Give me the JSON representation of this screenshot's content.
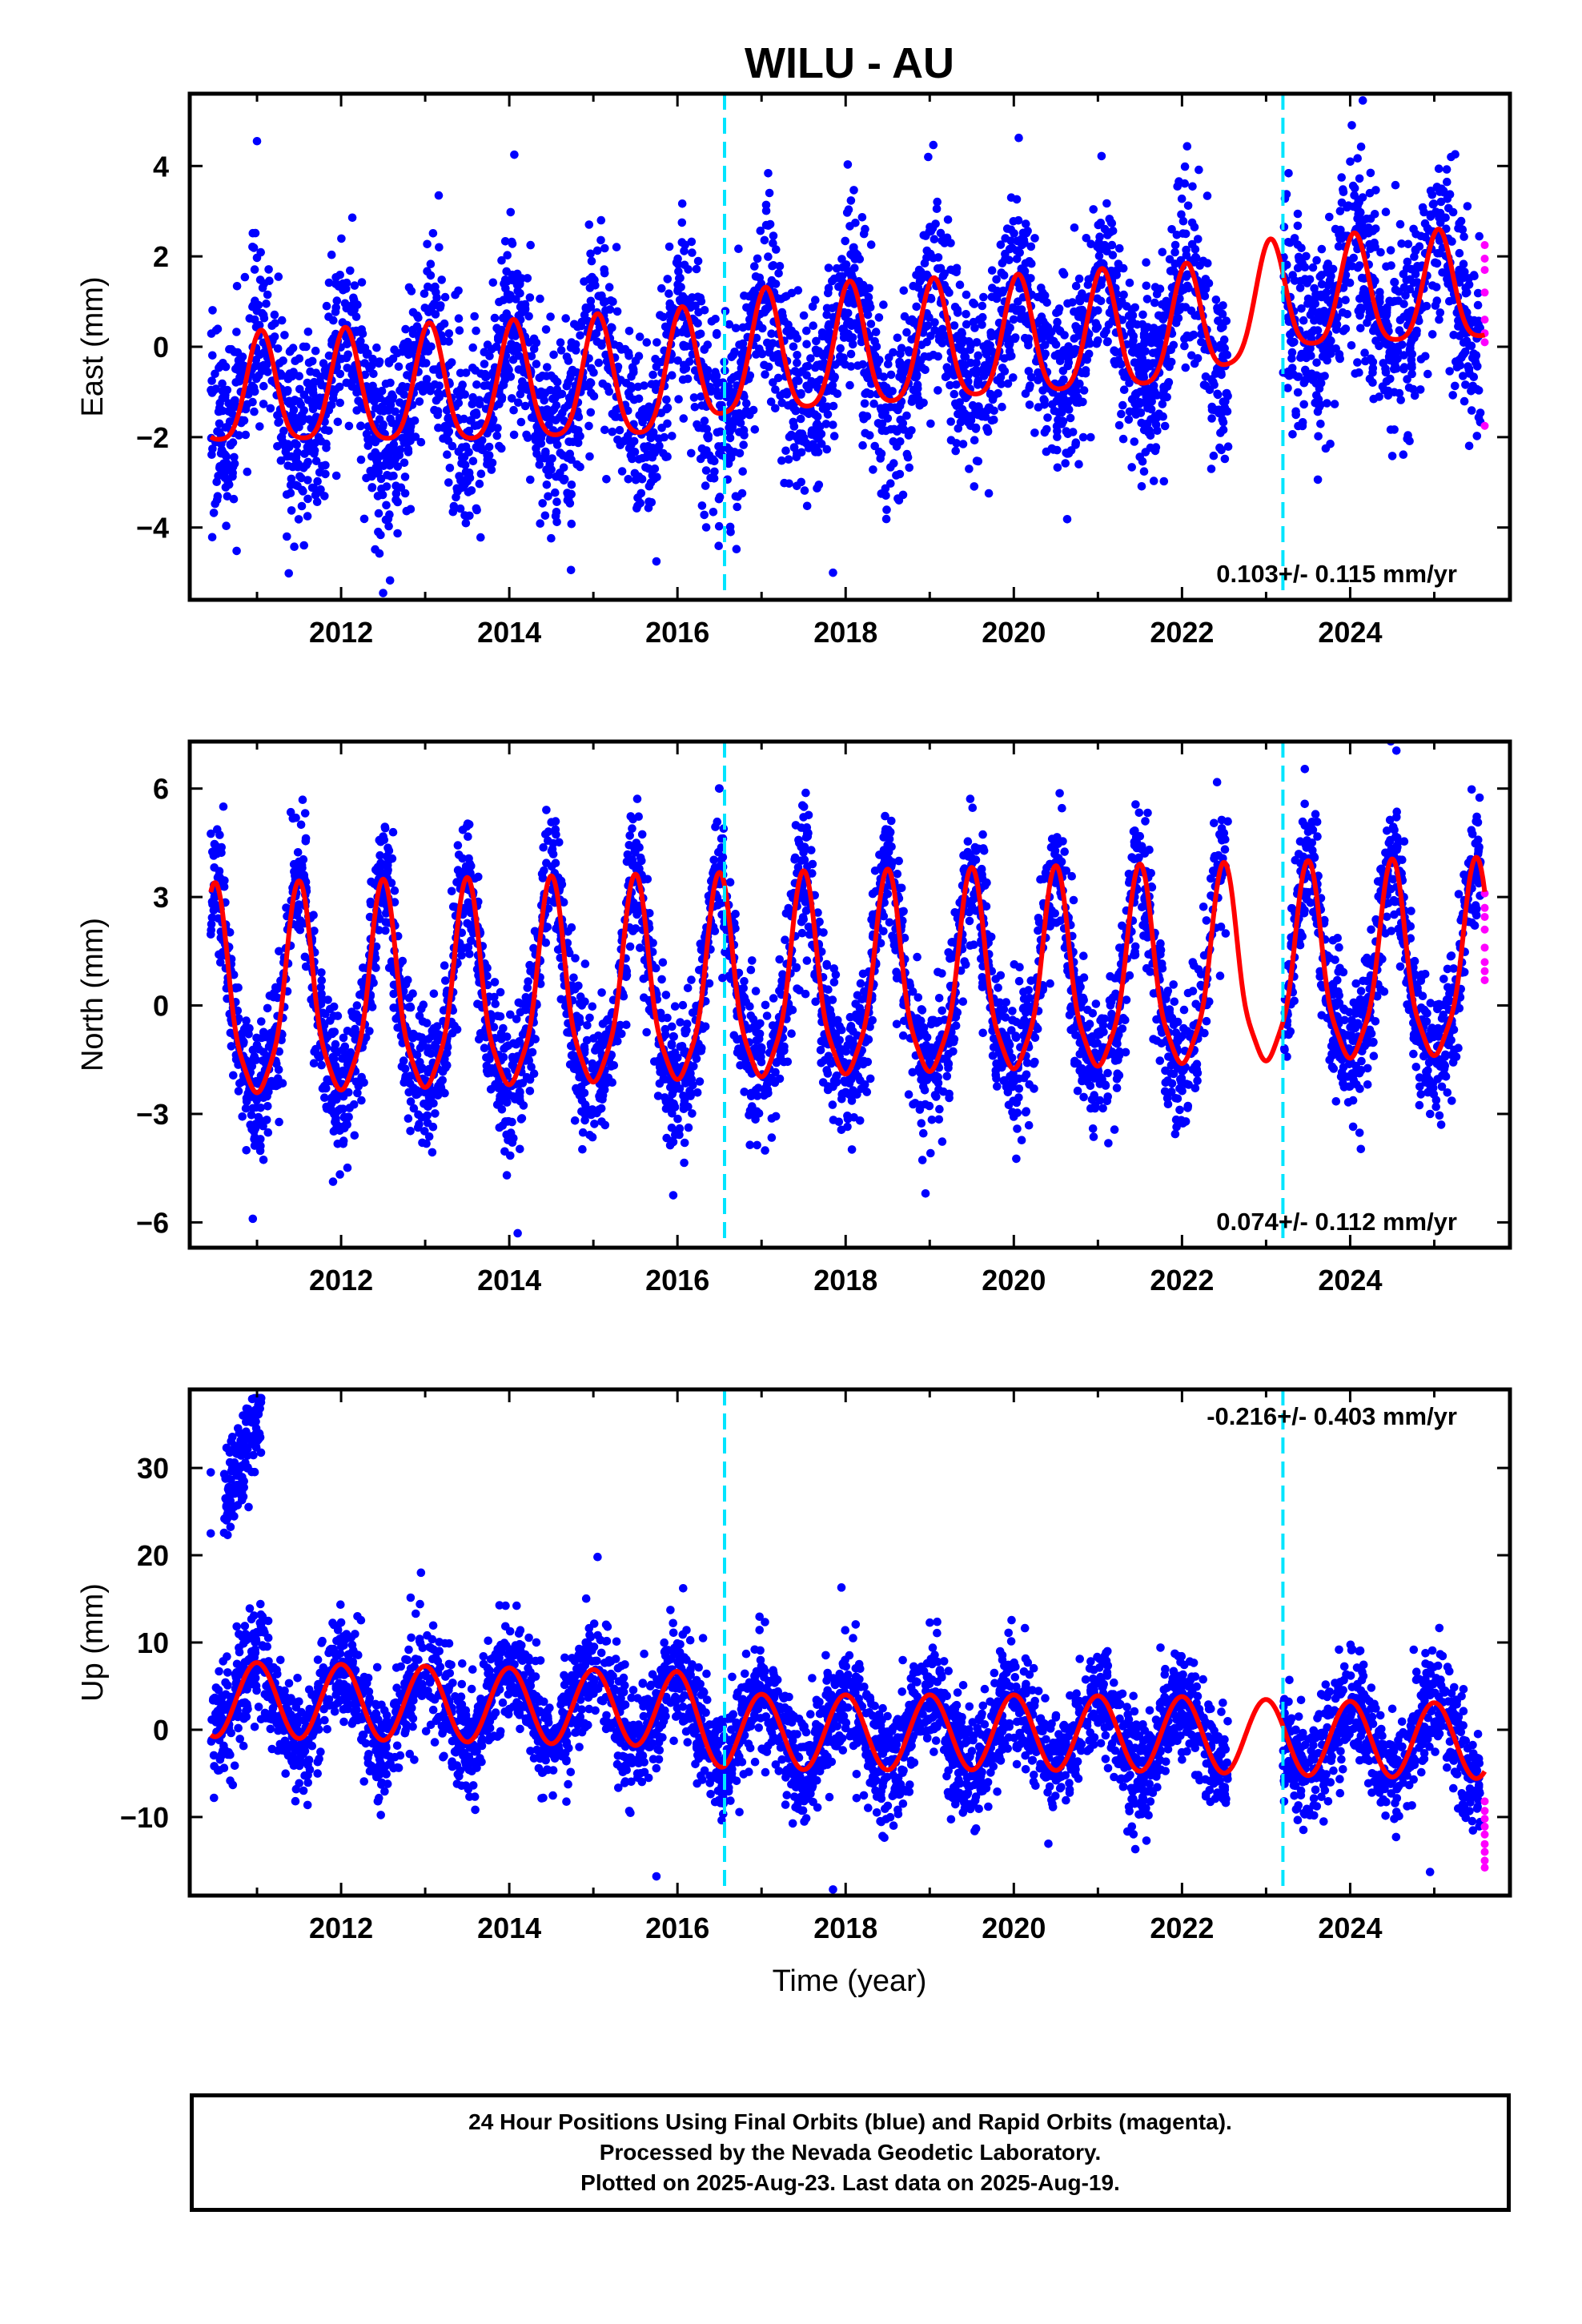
{
  "title": "WILU - AU",
  "colors": {
    "final_orbits": "#0000ff",
    "rapid_orbits": "#ff00ff",
    "model": "#ff0000",
    "breaks": "#00e5ff",
    "frame": "#000000"
  },
  "footer": {
    "line1": "24 Hour Positions Using Final Orbits (blue) and Rapid Orbits (magenta).",
    "line2": "Processed by the Nevada Geodetic Laboratory.",
    "line3": "Plotted on 2025-Aug-23. Last data on 2025-Aug-19."
  },
  "chart_data": [
    {
      "type": "scatter",
      "component": "east",
      "ylabel": "East (mm)",
      "xlabel": "",
      "xlim": [
        2010.2,
        2025.9
      ],
      "ylim": [
        -5.6,
        5.6
      ],
      "xticks": [
        2012,
        2014,
        2016,
        2018,
        2020,
        2022,
        2024
      ],
      "xtick_labels": [
        "2012",
        "2014",
        "2016",
        "2018",
        "2020",
        "2022",
        "2024"
      ],
      "yticks": [
        -4,
        -2,
        0,
        2,
        4
      ],
      "ytick_labels": [
        "−4",
        "−2",
        "0",
        "2",
        "4"
      ],
      "rate_label": "0.103+/- 0.115 mm/yr",
      "rate_position": "bottom-right",
      "breaks": [
        2016.56,
        2023.2
      ],
      "model": {
        "amplitude_mm": [
          1.2,
          1.2,
          1.25,
          1.3,
          1.3,
          1.35,
          1.35,
          1.35,
          1.35,
          1.3,
          1.3,
          1.3,
          1.25,
          1.2,
          1.2,
          1.2
        ],
        "amplitude_years": [
          2010.5,
          2011.5,
          2012.5,
          2013.5,
          2014.5,
          2015.5,
          2016.5,
          2017.5,
          2018.5,
          2019.5,
          2020.5,
          2021.5,
          2022.5,
          2023.5,
          2024.5,
          2025.5
        ],
        "offset_x": [
          2010.5,
          2012.0,
          2014.0,
          2016.0,
          2016.56,
          2018.0,
          2020.0,
          2022.0,
          2023.2,
          2025.0,
          2025.6
        ],
        "offset_y": [
          -1.1,
          -1.05,
          -0.95,
          -0.75,
          -0.35,
          -0.15,
          0.05,
          0.3,
          1.0,
          1.15,
          1.2
        ],
        "phase_peak": 0.05
      },
      "final_orbits": {
        "x_range": [
          2010.45,
          2025.55
        ],
        "gaps": [
          [
            2022.55,
            2023.2
          ]
        ],
        "noise_sd": 1.05,
        "count": 4200,
        "outliers": [
          [
            2011.0,
            4.55
          ],
          [
            2012.5,
            -5.45
          ],
          [
            2014.06,
            4.25
          ],
          [
            2015.75,
            -4.75
          ],
          [
            2017.85,
            -5.0
          ],
          [
            2024.15,
            5.45
          ],
          [
            2025.2,
            4.2
          ]
        ]
      },
      "rapid_orbits": {
        "x": [
          2025.6,
          2025.6,
          2025.6,
          2025.6,
          2025.6,
          2025.6,
          2025.6,
          2025.6
        ],
        "y": [
          2.25,
          1.95,
          1.7,
          1.2,
          0.6,
          0.3,
          0.1,
          -1.75
        ]
      }
    },
    {
      "type": "scatter",
      "component": "north",
      "ylabel": "North (mm)",
      "xlabel": "",
      "xlim": [
        2010.2,
        2025.9
      ],
      "ylim": [
        -6.7,
        7.3
      ],
      "xticks": [
        2012,
        2014,
        2016,
        2018,
        2020,
        2022,
        2024
      ],
      "xtick_labels": [
        "2012",
        "2014",
        "2016",
        "2018",
        "2020",
        "2022",
        "2024"
      ],
      "yticks": [
        -6,
        -3,
        0,
        3,
        6
      ],
      "ytick_labels": [
        "−6",
        "−3",
        "0",
        "3",
        "6"
      ],
      "rate_label": "0.074+/- 0.112 mm/yr",
      "rate_position": "bottom-right",
      "breaks": [
        2016.56,
        2023.2
      ],
      "model": {
        "base_mm": -1.9,
        "peak_mm": 3.6,
        "peak_drift": [
          2010.5,
          2025.5,
          3.4,
          4.1
        ],
        "trough_drift": [
          2010.5,
          2025.5,
          -2.2,
          -1.1
        ],
        "phase_peak": 0.5,
        "peak_sharpness": 4
      },
      "final_orbits": {
        "x_range": [
          2010.45,
          2025.55
        ],
        "gaps": [
          [
            2022.55,
            2023.2
          ]
        ],
        "noise_sd": 0.95,
        "count": 4200,
        "outliers": [
          [
            2010.6,
            5.5
          ],
          [
            2010.95,
            -5.9
          ],
          [
            2014.1,
            -6.3
          ],
          [
            2015.95,
            -5.25
          ],
          [
            2016.5,
            6.0
          ],
          [
            2018.95,
            -5.2
          ],
          [
            2024.55,
            7.05
          ]
        ]
      },
      "rapid_orbits": {
        "x": [
          2025.6,
          2025.6,
          2025.6,
          2025.6,
          2025.6,
          2025.6,
          2025.6,
          2025.6
        ],
        "y": [
          3.1,
          2.7,
          2.45,
          2.1,
          1.6,
          1.2,
          0.95,
          0.7
        ]
      }
    },
    {
      "type": "scatter",
      "component": "up",
      "ylabel": "Up (mm)",
      "xlabel": "Time (year)",
      "xlim": [
        2010.2,
        2025.9
      ],
      "ylim": [
        -19,
        39
      ],
      "xticks": [
        2012,
        2014,
        2016,
        2018,
        2020,
        2022,
        2024
      ],
      "xtick_labels": [
        "2012",
        "2014",
        "2016",
        "2018",
        "2020",
        "2022",
        "2024"
      ],
      "yticks": [
        -10,
        0,
        10,
        20,
        30
      ],
      "ytick_labels": [
        "−10",
        "0",
        "10",
        "20",
        "30"
      ],
      "rate_label": "-0.216+/- 0.403 mm/yr",
      "rate_position": "top-right",
      "breaks": [
        2016.56,
        2023.2
      ],
      "model": {
        "amplitude_mm": 4.3,
        "offset_x": [
          2010.5,
          2012.0,
          2014.0,
          2016.0,
          2016.56,
          2018.0,
          2020.0,
          2022.0,
          2023.2,
          2025.6
        ],
        "offset_y": [
          3.5,
          3.2,
          2.8,
          2.4,
          -0.2,
          -0.3,
          -0.3,
          -0.5,
          -0.9,
          -1.3
        ],
        "phase_peak": 0.0
      },
      "final_orbits": {
        "x_range": [
          2010.45,
          2025.55
        ],
        "gaps": [
          [
            2022.55,
            2023.2
          ]
        ],
        "noise_sd": 3.2,
        "count": 4200,
        "cluster": {
          "x_range": [
            2010.6,
            2011.05
          ],
          "y_range": [
            18,
            38
          ],
          "count": 140
        },
        "outliers": [
          [
            2010.45,
            29.5
          ],
          [
            2010.45,
            22.5
          ],
          [
            2012.95,
            18.0
          ],
          [
            2015.05,
            19.8
          ],
          [
            2015.75,
            -16.8
          ],
          [
            2017.85,
            -18.3
          ],
          [
            2017.95,
            16.3
          ],
          [
            2024.95,
            -16.3
          ]
        ]
      },
      "rapid_orbits": {
        "x": [
          2025.6,
          2025.6,
          2025.6,
          2025.6,
          2025.6,
          2025.6,
          2025.6,
          2025.6,
          2025.6
        ],
        "y": [
          -8.2,
          -9.3,
          -10.2,
          -11.1,
          -12.0,
          -13.1,
          -14.0,
          -15.0,
          -15.8
        ]
      }
    }
  ]
}
